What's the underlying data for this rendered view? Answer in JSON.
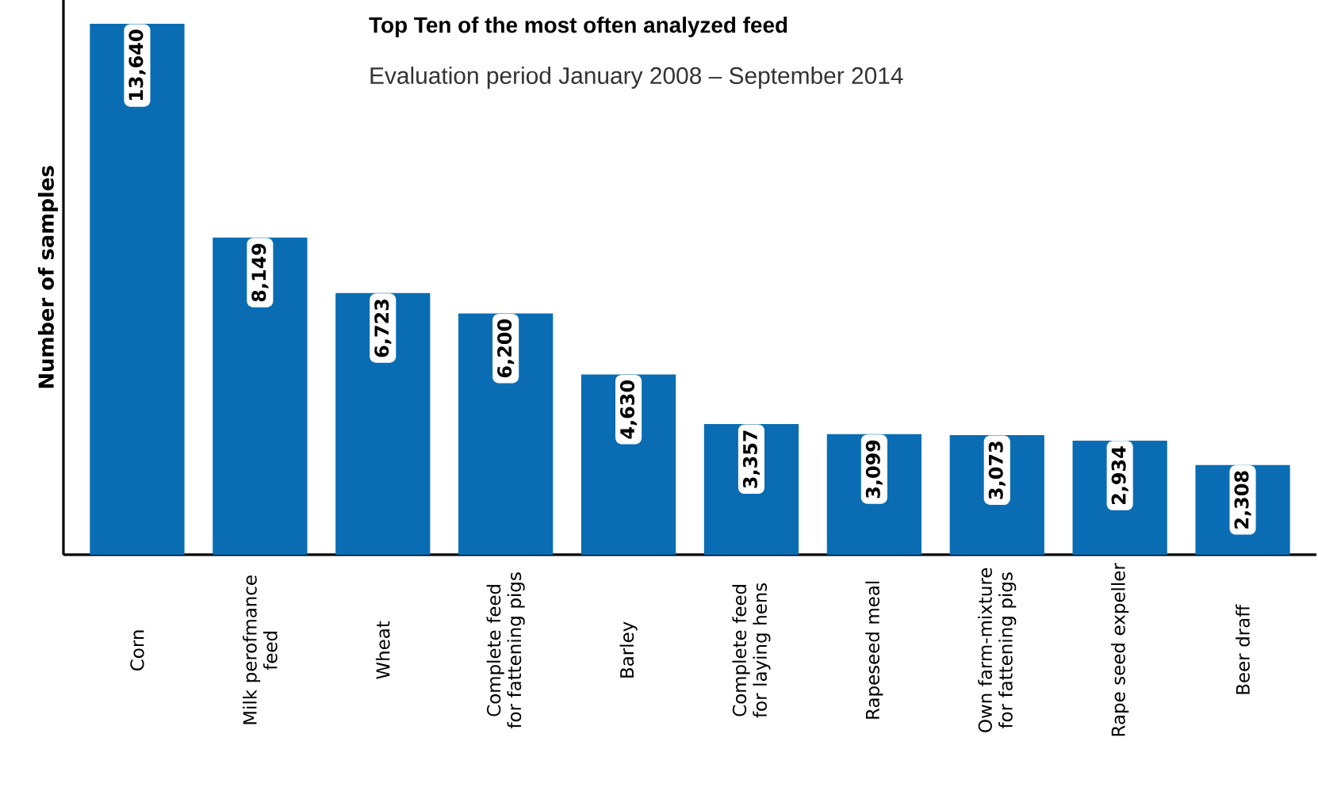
{
  "chart_data": {
    "type": "bar",
    "title": "Top Ten of the most often analyzed feed",
    "subtitle": "Evaluation period January 2008 – September 2014",
    "ylabel": "Number of samples",
    "categories": [
      "Corn",
      "Milk perofmance feed",
      "Wheat",
      "Complete feed for fattening pigs",
      "Barley",
      "Complete feed for laying hens",
      "Rapeseed meal",
      "Own farm-mixture for fattening pigs",
      "Rape seed expeller",
      "Beer draff"
    ],
    "values": [
      13640,
      8149,
      6723,
      6200,
      4630,
      3357,
      3099,
      3073,
      2934,
      2308
    ],
    "value_labels": [
      "13,640",
      "8,149",
      "6,723",
      "6,200",
      "4,630",
      "3,357",
      "3,099",
      "3,073",
      "2,934",
      "2,308"
    ],
    "color": "#0a6db3"
  }
}
